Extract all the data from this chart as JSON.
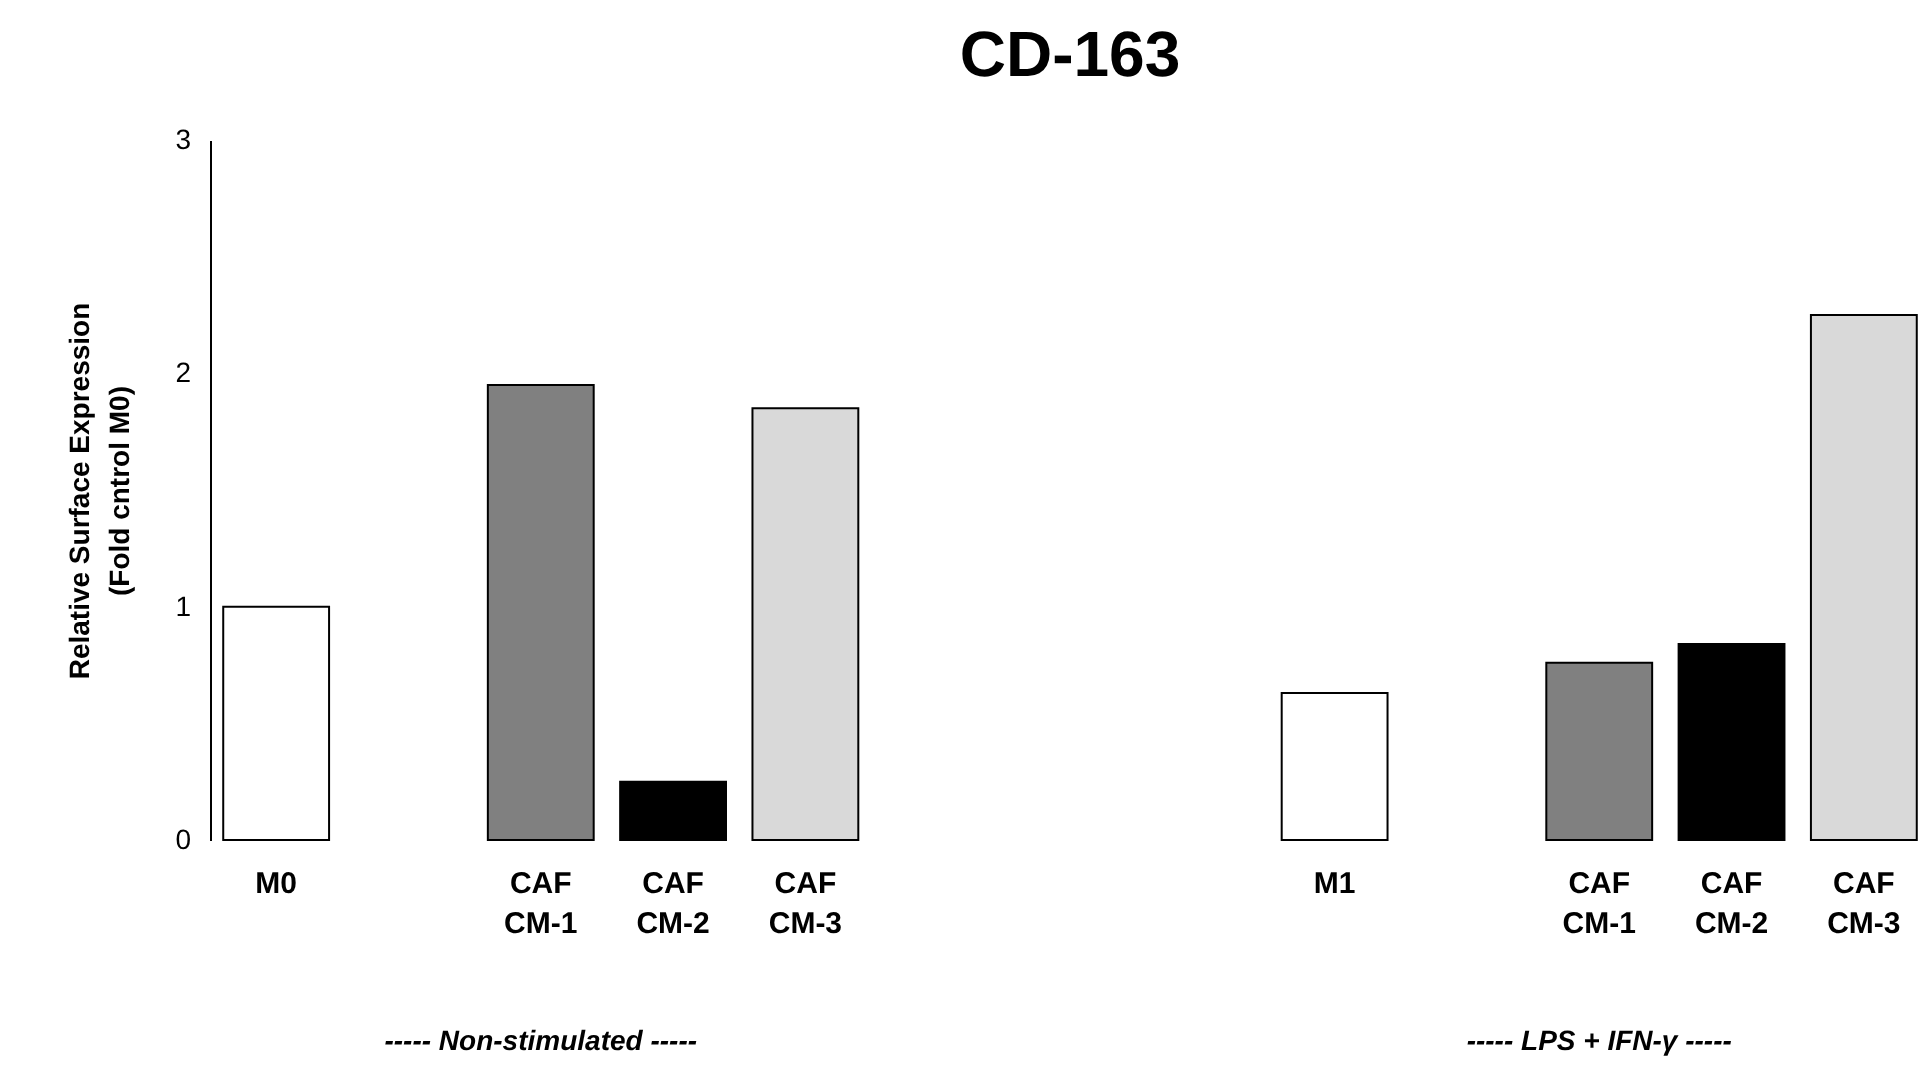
{
  "chart_data": {
    "type": "bar",
    "title": "CD-163",
    "ylabel": "Relative Surface Expression\n(Fold cntrol M0)",
    "categories": [
      "M0",
      null,
      "CAF CM-1",
      "CAF CM-2",
      "CAF CM-3",
      null,
      null,
      null,
      "M1",
      null,
      "CAF CM-1",
      "CAF CM-2",
      "CAF CM-3"
    ],
    "values": [
      1.0,
      null,
      1.95,
      0.25,
      1.85,
      null,
      null,
      null,
      0.63,
      null,
      0.76,
      0.84,
      2.25
    ],
    "colors": [
      "#ffffff",
      null,
      "#808080",
      "#000000",
      "#d9d9d9",
      null,
      null,
      null,
      "#ffffff",
      null,
      "#808080",
      "#000000",
      "#d9d9d9"
    ],
    "ylim": [
      0,
      3
    ],
    "yticks": [
      0,
      1,
      2,
      3
    ],
    "grid": false,
    "annotations": [
      "----- Non-stimulated -----",
      "----- LPS + IFN-γ -----"
    ]
  }
}
